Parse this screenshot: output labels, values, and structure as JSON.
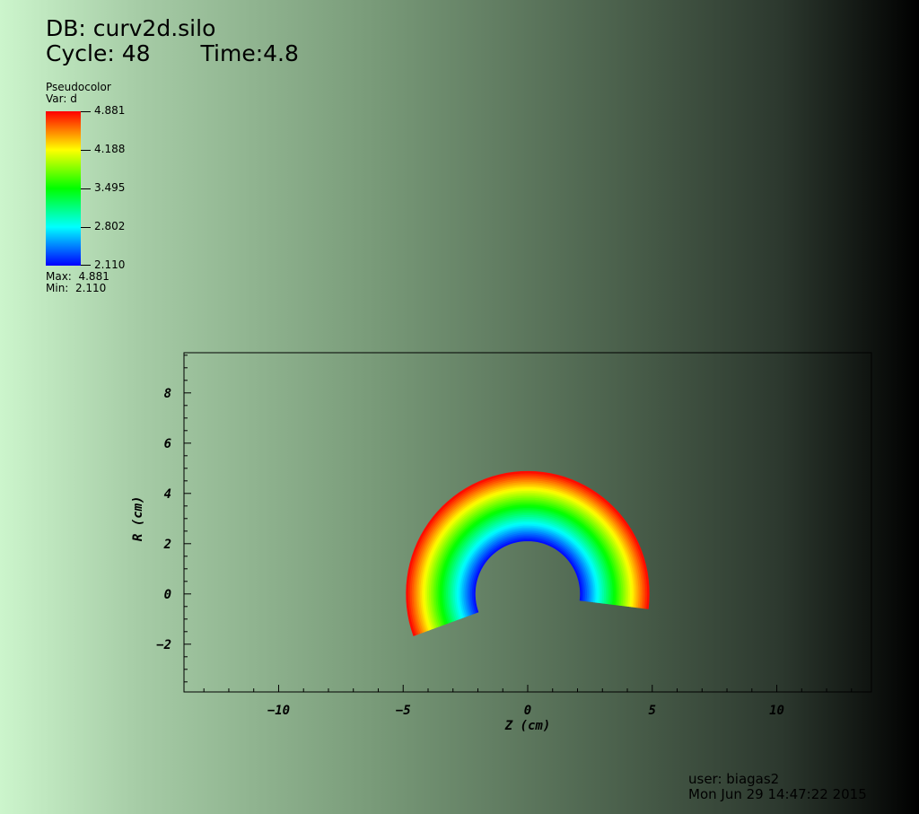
{
  "header": {
    "db": "DB: curv2d.silo",
    "cycle": "Cycle: 48",
    "time": "Time:4.8"
  },
  "legend": {
    "plot_type": "Pseudocolor",
    "var": "Var: d",
    "ticks": [
      "4.881",
      "4.188",
      "3.495",
      "2.802",
      "2.110"
    ],
    "max": "Max:  4.881",
    "min": "Min:  2.110"
  },
  "footer": {
    "user": "user: biagas2",
    "date": "Mon Jun 29 14:47:22 2015"
  },
  "chart_data": {
    "type": "heatmap",
    "xlabel": "Z (cm)",
    "ylabel": "R (cm)",
    "xlim": [
      -13.8,
      13.8
    ],
    "ylim": [
      -3.9,
      9.6
    ],
    "xticks": [
      -10,
      -5,
      0,
      5,
      10
    ],
    "yticks": [
      -2,
      0,
      2,
      4,
      6,
      8
    ],
    "mesh": {
      "shape": "annular-sector",
      "inner_radius": 2.11,
      "outer_radius": 4.88,
      "start_angle_deg": -7,
      "end_angle_deg": 200
    },
    "colormap": [
      "#0000ff",
      "#00ffff",
      "#00ff00",
      "#ffff00",
      "#ff0000"
    ],
    "value_range": [
      2.11,
      4.881
    ]
  }
}
